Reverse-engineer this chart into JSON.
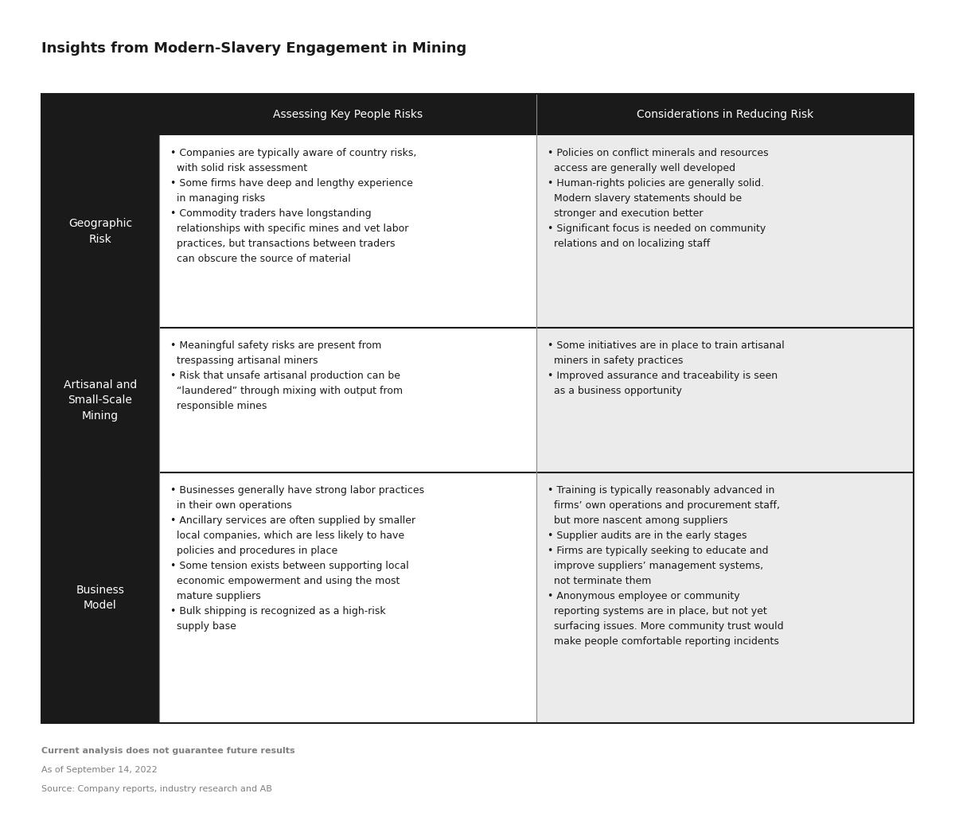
{
  "title": "Insights from Modern-Slavery Engagement in Mining",
  "col_headers": [
    "Assessing Key People Risks",
    "Considerations in Reducing Risk"
  ],
  "row_labels": [
    "Geographic\nRisk",
    "Artisanal and\nSmall-Scale\nMining",
    "Business\nModel"
  ],
  "col1_rows": [
    "• Companies are typically aware of country risks,\n  with solid risk assessment\n• Some firms have deep and lengthy experience\n  in managing risks\n• Commodity traders have longstanding\n  relationships with specific mines and vet labor\n  practices, but transactions between traders\n  can obscure the source of material",
    "• Meaningful safety risks are present from\n  trespassing artisanal miners\n• Risk that unsafe artisanal production can be\n  “laundered” through mixing with output from\n  responsible mines",
    "• Businesses generally have strong labor practices\n  in their own operations\n• Ancillary services are often supplied by smaller\n  local companies, which are less likely to have\n  policies and procedures in place\n• Some tension exists between supporting local\n  economic empowerment and using the most\n  mature suppliers\n• Bulk shipping is recognized as a high-risk\n  supply base"
  ],
  "col2_rows": [
    "• Policies on conflict minerals and resources\n  access are generally well developed\n• Human-rights policies are generally solid.\n  Modern slavery statements should be\n  stronger and execution better\n• Significant focus is needed on community\n  relations and on localizing staff",
    "• Some initiatives are in place to train artisanal\n  miners in safety practices\n• Improved assurance and traceability is seen\n  as a business opportunity",
    "• Training is typically reasonably advanced in\n  firms’ own operations and procurement staff,\n  but more nascent among suppliers\n• Supplier audits are in the early stages\n• Firms are typically seeking to educate and\n  improve suppliers’ management systems,\n  not terminate them\n• Anonymous employee or community\n  reporting systems are in place, but not yet\n  surfacing issues. More community trust would\n  make people comfortable reporting incidents"
  ],
  "footer_bold": "Current analysis does not guarantee future results",
  "footer_line2": "As of September 14, 2022",
  "footer_line3": "Source: Company reports, industry research and AB",
  "bg_color": "#ffffff",
  "header_bg": "#1a1a1a",
  "header_text_color": "#ffffff",
  "row_label_bg": "#1a1a1a",
  "row_label_text_color": "#ffffff",
  "cell_bg_col1": "#ffffff",
  "cell_bg_col2": "#ebebeb",
  "border_color": "#1a1a1a",
  "text_color": "#1a1a1a",
  "footer_color": "#808080",
  "title_fontsize": 13,
  "header_fontsize": 10,
  "label_fontsize": 10,
  "cell_fontsize": 9,
  "footer_fontsize": 8
}
